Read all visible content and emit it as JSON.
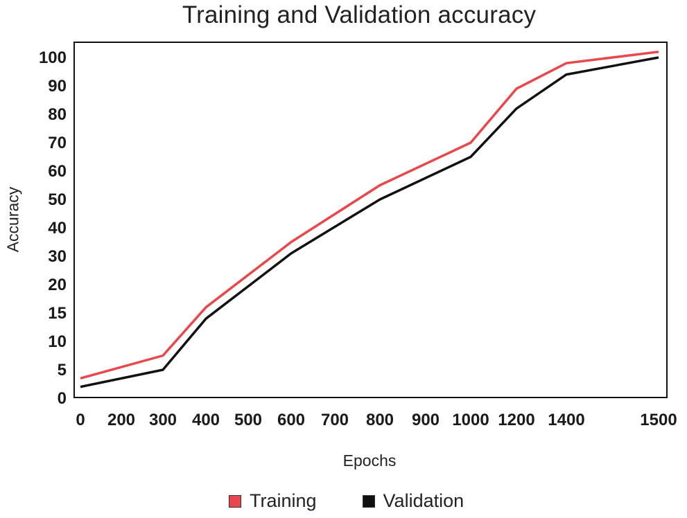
{
  "chart_data": {
    "type": "line",
    "title": "Training and Validation accuracy",
    "xlabel": "Epochs",
    "ylabel": "Accuracy",
    "x_tick_labels": [
      "0",
      "200",
      "300",
      "400",
      "500",
      "600",
      "700",
      "800",
      "900",
      "1000",
      "1200",
      "1400",
      "1500"
    ],
    "y_tick_labels": [
      "0",
      "5",
      "10",
      "15",
      "20",
      "30",
      "40",
      "50",
      "60",
      "70",
      "80",
      "90",
      "100"
    ],
    "grid": false,
    "legend_position": "bottom",
    "series": [
      {
        "name": "Training",
        "color": "#e8474c",
        "x": [
          0,
          300,
          400,
          600,
          800,
          1000,
          1200,
          1400,
          1500
        ],
        "y": [
          3.5,
          7.5,
          16,
          35,
          55,
          70,
          89,
          98,
          102
        ]
      },
      {
        "name": "Validation",
        "color": "#111111",
        "x": [
          0,
          300,
          400,
          600,
          800,
          1000,
          1200,
          1400,
          1500
        ],
        "y": [
          2,
          5,
          14,
          31,
          50,
          65,
          82,
          94,
          100
        ]
      }
    ]
  }
}
